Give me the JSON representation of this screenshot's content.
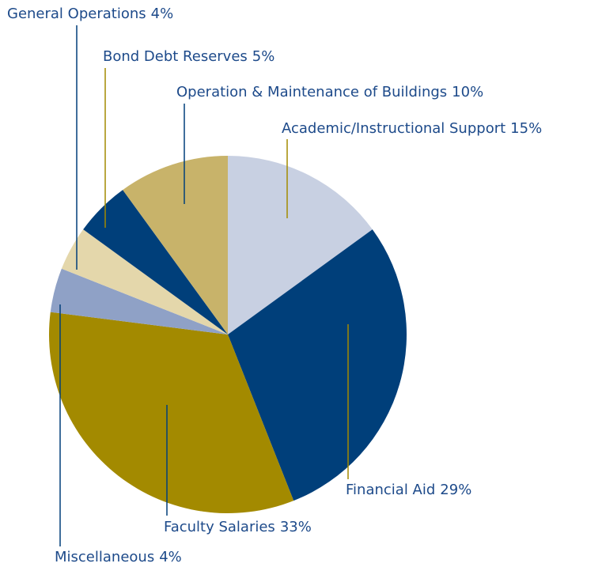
{
  "chart_data": {
    "type": "pie",
    "categories": [
      "Academic/Instructional Support",
      "Financial Aid",
      "Faculty Salaries",
      "Miscellaneous",
      "General Operations",
      "Bond Debt Reserves",
      "Operation & Maintenance of Buildings"
    ],
    "values": [
      15,
      29,
      33,
      4,
      4,
      5,
      10
    ],
    "value_labels": [
      "15%",
      "29%",
      "33%",
      "4%",
      "4%",
      "5%",
      "10%"
    ],
    "colors": [
      "#c8d0e2",
      "#003f7a",
      "#a38a00",
      "#8fa1c6",
      "#e4d7ab",
      "#003f7a",
      "#c8b36a"
    ]
  }
}
